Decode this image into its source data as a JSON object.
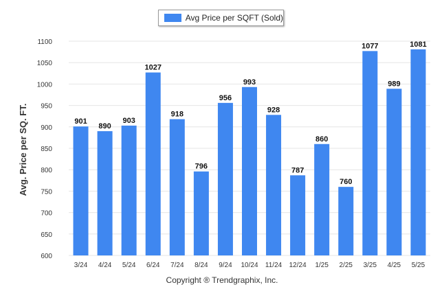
{
  "colors": {
    "bar": "#3f87f0",
    "grid": "#e6e6e6",
    "axis_text": "#333333"
  },
  "legend": {
    "label": "Avg Price per SQFT (Sold)"
  },
  "footer": {
    "copyright": "Copyright ® Trendgraphix, Inc."
  },
  "chart_data": {
    "type": "bar",
    "title": "",
    "xlabel": "",
    "ylabel": "Avg. Price per SQ. FT.",
    "ylim": [
      600,
      1100
    ],
    "yticks": [
      600,
      650,
      700,
      750,
      800,
      850,
      900,
      950,
      1000,
      1050,
      1100
    ],
    "grid": true,
    "legend_position": "top-center",
    "categories": [
      "3/24",
      "4/24",
      "5/24",
      "6/24",
      "7/24",
      "8/24",
      "9/24",
      "10/24",
      "11/24",
      "12/24",
      "1/25",
      "2/25",
      "3/25",
      "4/25",
      "5/25"
    ],
    "series": [
      {
        "name": "Avg Price per SQFT (Sold)",
        "values": [
          901,
          890,
          903,
          1027,
          918,
          796,
          956,
          993,
          928,
          787,
          860,
          760,
          1077,
          989,
          1081
        ]
      }
    ]
  }
}
